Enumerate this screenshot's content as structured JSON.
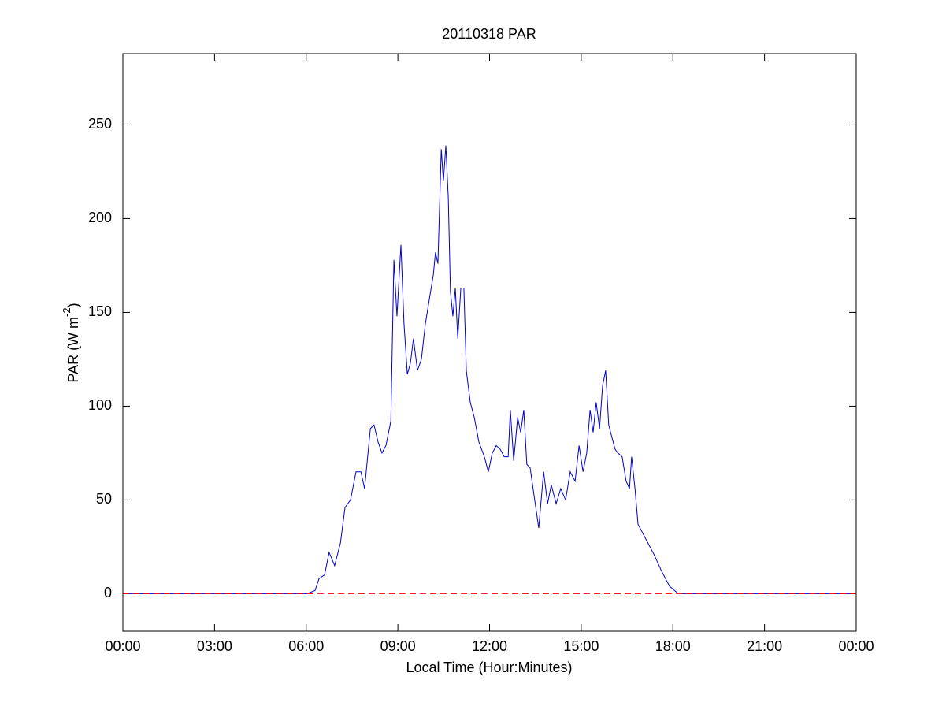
{
  "chart_data": {
    "type": "line",
    "title": "20110318 PAR",
    "xlabel": "Local Time (Hour:Minutes)",
    "ylabel": {
      "text": "PAR (W m",
      "superscript": "-2",
      "suffix": ")"
    },
    "xlim": [
      0,
      24
    ],
    "xticks": [
      {
        "value": 0,
        "label": "00:00"
      },
      {
        "value": 3,
        "label": "03:00"
      },
      {
        "value": 6,
        "label": "06:00"
      },
      {
        "value": 9,
        "label": "09:00"
      },
      {
        "value": 12,
        "label": "12:00"
      },
      {
        "value": 15,
        "label": "15:00"
      },
      {
        "value": 18,
        "label": "18:00"
      },
      {
        "value": 21,
        "label": "21:00"
      },
      {
        "value": 24,
        "label": "00:00"
      }
    ],
    "ylim": [
      -20,
      288
    ],
    "yticks": [
      0,
      50,
      100,
      150,
      200,
      250
    ],
    "grid": false,
    "reference_line": {
      "y": 0,
      "color": "#ff0000",
      "style": "dashed"
    },
    "x": [
      0,
      6.03,
      6.29,
      6.42,
      6.6,
      6.75,
      6.93,
      7.12,
      7.27,
      7.45,
      7.63,
      7.79,
      7.91,
      8.1,
      8.22,
      8.35,
      8.48,
      8.61,
      8.77,
      8.87,
      8.97,
      9.1,
      9.2,
      9.31,
      9.41,
      9.51,
      9.64,
      9.77,
      9.9,
      10.03,
      10.16,
      10.23,
      10.31,
      10.42,
      10.49,
      10.57,
      10.65,
      10.72,
      10.8,
      10.88,
      10.96,
      11.06,
      11.16,
      11.24,
      11.37,
      11.5,
      11.65,
      11.83,
      11.96,
      12.09,
      12.22,
      12.35,
      12.48,
      12.61,
      12.68,
      12.79,
      12.92,
      13.02,
      13.12,
      13.22,
      13.33,
      13.46,
      13.61,
      13.77,
      13.9,
      14.02,
      14.18,
      14.33,
      14.49,
      14.64,
      14.8,
      14.93,
      15.06,
      15.18,
      15.29,
      15.39,
      15.49,
      15.6,
      15.7,
      15.8,
      15.9,
      16.01,
      16.11,
      16.2,
      16.34,
      16.47,
      16.58,
      16.65,
      16.76,
      16.86,
      17.12,
      17.38,
      17.63,
      17.89,
      18.15,
      18.3,
      24
    ],
    "series": [
      {
        "name": "PAR",
        "color": "#0000cc",
        "values": [
          0,
          0,
          1.7,
          8,
          10,
          22,
          15,
          27,
          46,
          50,
          65,
          65,
          56,
          88,
          90,
          81,
          75,
          79,
          92,
          178,
          148,
          186,
          144,
          117,
          123,
          136,
          119,
          125,
          144,
          157,
          170,
          182,
          176,
          237,
          220,
          239,
          211,
          161,
          148,
          163,
          136,
          163,
          163,
          119,
          102,
          94,
          81,
          73,
          65,
          75,
          79,
          77,
          73,
          73,
          98,
          71,
          94,
          86,
          98,
          69,
          67,
          52,
          35,
          65,
          48,
          58,
          48,
          56,
          50,
          65,
          60,
          79,
          65,
          75,
          98,
          86,
          102,
          88,
          111,
          119,
          90,
          83,
          77,
          75,
          73,
          60,
          56,
          73,
          56,
          37,
          29,
          21,
          12,
          4,
          0.4,
          0,
          0
        ]
      }
    ]
  }
}
